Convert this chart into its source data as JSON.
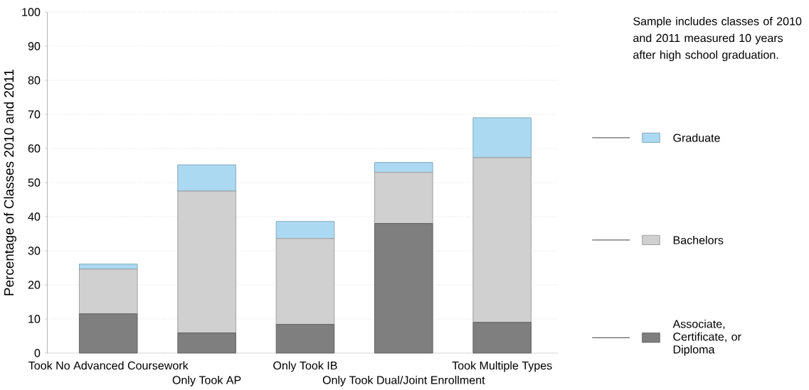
{
  "chart_data": {
    "type": "bar",
    "stacked": true,
    "ylabel": "Percentage of Classes 2010 and 2011",
    "categories": [
      "Took No Advanced Coursework",
      "Only Took AP",
      "Only Took IB",
      "Only Took Dual/Joint Enrollment",
      "Took Multiple Types"
    ],
    "series": [
      {
        "name": "Associate, Certificate, or Diploma",
        "color": "#7f7f7f",
        "values": [
          11.5,
          5.9,
          8.4,
          38.0,
          9.0
        ]
      },
      {
        "name": "Bachelors",
        "color": "#d0d0d0",
        "values": [
          13.1,
          41.6,
          25.2,
          15.0,
          48.3
        ]
      },
      {
        "name": "Graduate",
        "color": "#acd9f2",
        "values": [
          1.5,
          7.7,
          5.0,
          2.9,
          11.7
        ]
      }
    ],
    "ylim": [
      0,
      100
    ],
    "yticks": [
      0,
      10,
      20,
      30,
      40,
      50,
      60,
      70,
      80,
      90,
      100
    ],
    "grid": "y",
    "legend": "right",
    "annotations": [
      "Sample includes classes of 2010 and 2011 measured 10 years after high school graduation."
    ]
  }
}
